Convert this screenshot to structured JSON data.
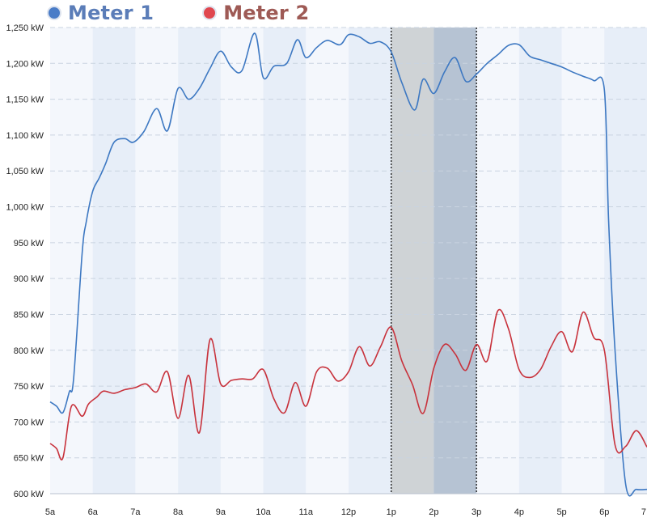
{
  "legend": [
    {
      "label": "Meter 1",
      "color": "#4a7cc7",
      "text_color": "#5b7db8"
    },
    {
      "label": "Meter 2",
      "color": "#e0474f",
      "text_color": "#9e5a55"
    }
  ],
  "chart_data": {
    "type": "line",
    "title": "",
    "xlabel": "",
    "ylabel": "",
    "ylim": [
      600,
      1250
    ],
    "y_ticks": [
      "600 kW",
      "650 kW",
      "700 kW",
      "750 kW",
      "800 kW",
      "850 kW",
      "900 kW",
      "950 kW",
      "1,000 kW",
      "1,050 kW",
      "1,100 kW",
      "1,150 kW",
      "1,200 kW",
      "1,250 kW"
    ],
    "x_ticks": [
      "5a",
      "6a",
      "7a",
      "8a",
      "9a",
      "10a",
      "11a",
      "12p",
      "1p",
      "2p",
      "3p",
      "4p",
      "5p",
      "6p",
      "7"
    ],
    "xlim": [
      5,
      19
    ],
    "grid": "horizontal dashed",
    "highlight_range": [
      13,
      15
    ],
    "series": [
      {
        "name": "Meter 1",
        "color": "#3d78c2",
        "x": [
          5.0,
          5.15,
          5.3,
          5.45,
          5.55,
          5.75,
          5.85,
          6.0,
          6.15,
          6.3,
          6.5,
          6.75,
          6.95,
          7.2,
          7.5,
          7.75,
          8.0,
          8.25,
          8.5,
          8.75,
          9.0,
          9.25,
          9.5,
          9.8,
          10.0,
          10.25,
          10.55,
          10.8,
          11.0,
          11.25,
          11.5,
          11.8,
          12.0,
          12.25,
          12.5,
          12.75,
          13.0,
          13.25,
          13.55,
          13.75,
          14.0,
          14.25,
          14.5,
          14.75,
          15.0,
          15.25,
          15.5,
          15.75,
          16.0,
          16.25,
          16.5,
          16.75,
          17.0,
          17.25,
          17.5,
          17.75,
          18.0,
          18.1,
          18.25,
          18.5,
          18.75,
          19.0
        ],
        "values": [
          728,
          722,
          713,
          742,
          760,
          935,
          980,
          1022,
          1040,
          1060,
          1090,
          1095,
          1090,
          1105,
          1137,
          1106,
          1165,
          1150,
          1165,
          1193,
          1217,
          1195,
          1190,
          1242,
          1180,
          1196,
          1200,
          1233,
          1208,
          1222,
          1232,
          1226,
          1240,
          1237,
          1228,
          1230,
          1216,
          1173,
          1135,
          1178,
          1158,
          1188,
          1208,
          1175,
          1185,
          1200,
          1212,
          1225,
          1226,
          1210,
          1205,
          1200,
          1195,
          1188,
          1182,
          1176,
          1163,
          980,
          800,
          613,
          606,
          606
        ]
      },
      {
        "name": "Meter 2",
        "color": "#c8323c",
        "x": [
          5.0,
          5.15,
          5.3,
          5.5,
          5.75,
          5.9,
          6.1,
          6.25,
          6.5,
          6.75,
          7.0,
          7.25,
          7.5,
          7.75,
          8.0,
          8.25,
          8.5,
          8.75,
          9.0,
          9.25,
          9.5,
          9.75,
          10.0,
          10.25,
          10.5,
          10.75,
          11.0,
          11.25,
          11.5,
          11.75,
          12.0,
          12.25,
          12.5,
          12.75,
          13.0,
          13.25,
          13.5,
          13.75,
          14.0,
          14.25,
          14.5,
          14.75,
          15.0,
          15.25,
          15.5,
          15.75,
          16.0,
          16.25,
          16.5,
          16.75,
          17.0,
          17.25,
          17.5,
          17.75,
          18.0,
          18.25,
          18.5,
          18.75,
          19.0
        ],
        "values": [
          670,
          663,
          650,
          722,
          708,
          725,
          735,
          743,
          740,
          745,
          748,
          753,
          742,
          770,
          705,
          765,
          685,
          815,
          753,
          758,
          760,
          760,
          773,
          732,
          713,
          755,
          722,
          770,
          775,
          757,
          770,
          805,
          778,
          805,
          832,
          785,
          752,
          712,
          775,
          808,
          795,
          772,
          808,
          785,
          855,
          830,
          773,
          762,
          773,
          805,
          826,
          798,
          853,
          818,
          800,
          668,
          666,
          688,
          665
        ]
      }
    ]
  }
}
